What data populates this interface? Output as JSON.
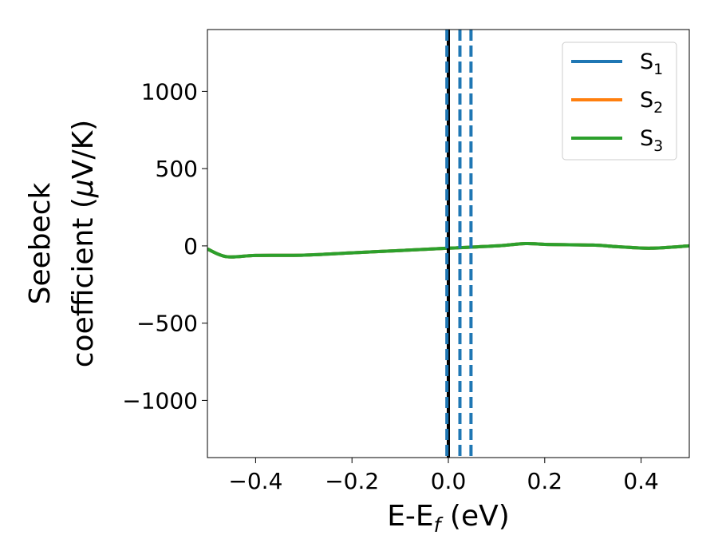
{
  "chart_data": {
    "type": "line",
    "title": "",
    "xlabel": {
      "main": "E-E",
      "sub": "f",
      "rest": " (eV)"
    },
    "ylabel": {
      "line1": "Seebeck",
      "line2_main": "coefficient  (",
      "mu": "μ",
      "line2_rest": "V/K)"
    },
    "xlim": [
      -0.5,
      0.5
    ],
    "ylim": [
      -1370,
      1400
    ],
    "x_ticks": [
      -0.4,
      -0.2,
      0.0,
      0.2,
      0.4
    ],
    "x_tick_labels": [
      "−0.4",
      "−0.2",
      "0.0",
      "0.2",
      "0.4"
    ],
    "y_ticks": [
      -1000,
      -500,
      0,
      500,
      1000
    ],
    "y_tick_labels": [
      "−1000",
      "−500",
      "0",
      "500",
      "1000"
    ],
    "legend_position": "top-right",
    "series": [
      {
        "name": "S",
        "sub": "1",
        "color": "#1f77b4",
        "x": [
          -0.5,
          -0.46,
          -0.4,
          -0.3,
          -0.2,
          -0.1,
          0.0,
          0.1,
          0.16,
          0.2,
          0.3,
          0.35,
          0.42,
          0.5
        ],
        "y": [
          -20,
          -70,
          -62,
          -60,
          -45,
          -30,
          -15,
          0,
          15,
          10,
          5,
          -5,
          -15,
          0
        ]
      },
      {
        "name": "S",
        "sub": "2",
        "color": "#ff7f0e",
        "x": [
          -0.5,
          -0.46,
          -0.4,
          -0.3,
          -0.2,
          -0.1,
          0.0,
          0.1,
          0.16,
          0.2,
          0.3,
          0.35,
          0.42,
          0.5
        ],
        "y": [
          -20,
          -70,
          -62,
          -60,
          -45,
          -30,
          -15,
          0,
          15,
          10,
          5,
          -5,
          -15,
          0
        ]
      },
      {
        "name": "S",
        "sub": "3",
        "color": "#2ca02c",
        "x": [
          -0.5,
          -0.46,
          -0.4,
          -0.3,
          -0.2,
          -0.1,
          0.0,
          0.1,
          0.16,
          0.2,
          0.3,
          0.35,
          0.42,
          0.5
        ],
        "y": [
          -20,
          -70,
          -62,
          -60,
          -45,
          -30,
          -15,
          0,
          15,
          10,
          5,
          -5,
          -15,
          0
        ]
      }
    ],
    "vertical_lines": [
      {
        "x": 0.0,
        "color": "#000000",
        "style": "solid"
      },
      {
        "x": -0.003,
        "color": "#1f77b4",
        "style": "dashed"
      },
      {
        "x": 0.024,
        "color": "#1f77b4",
        "style": "dashed"
      },
      {
        "x": 0.047,
        "color": "#1f77b4",
        "style": "dashed"
      }
    ]
  }
}
